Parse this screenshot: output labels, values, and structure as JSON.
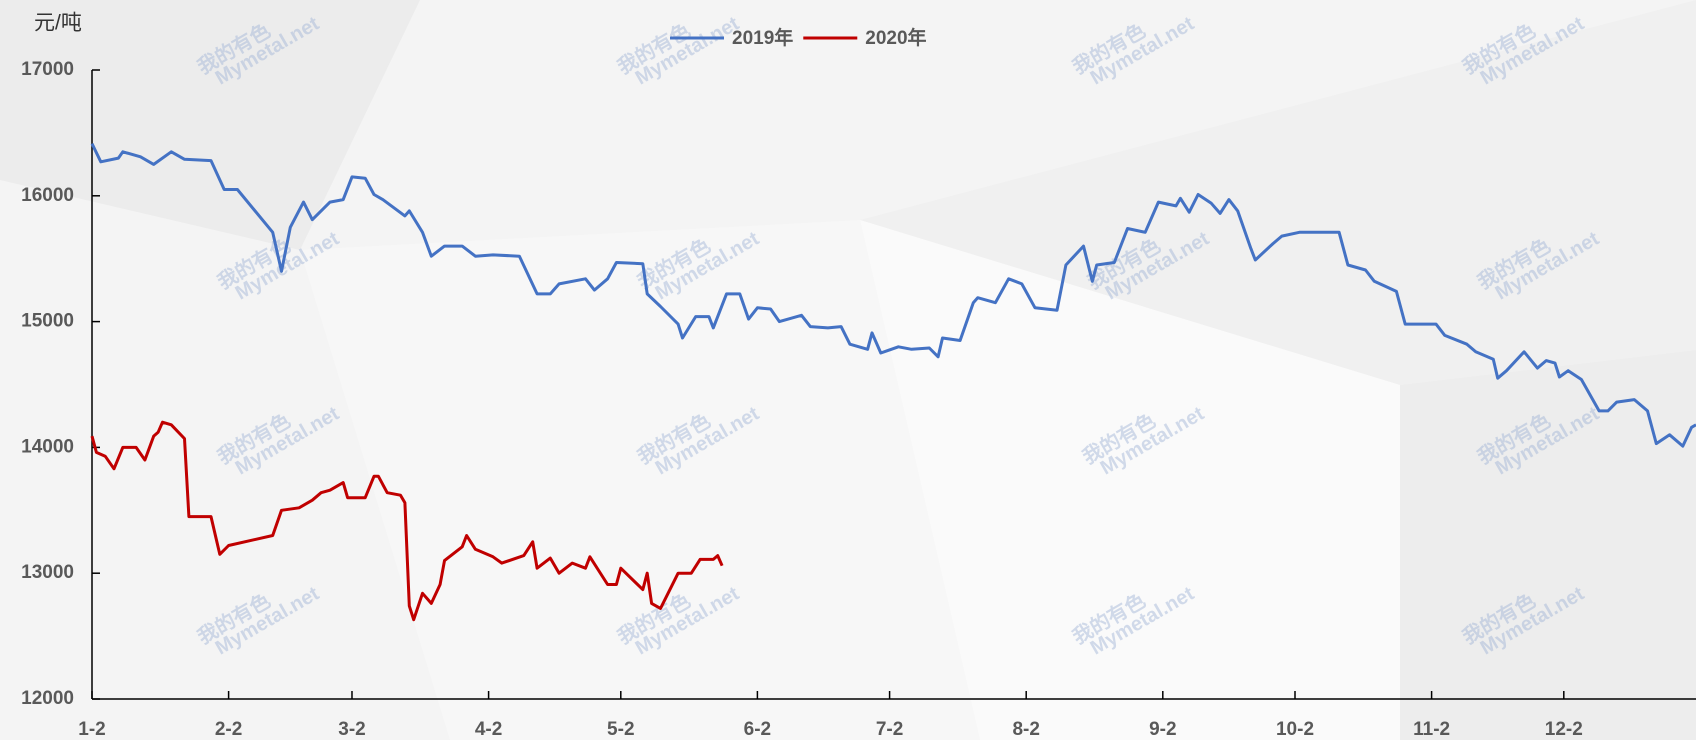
{
  "chart_data": {
    "type": "line",
    "y_label": "元/吨",
    "watermark": {
      "cn": "我的有色",
      "en": "Mymetal.net"
    },
    "xlim": [
      0,
      364
    ],
    "xticks": [
      {
        "value": 0,
        "label": "1-2"
      },
      {
        "value": 31,
        "label": "2-2"
      },
      {
        "value": 59,
        "label": "3-2"
      },
      {
        "value": 90,
        "label": "4-2"
      },
      {
        "value": 120,
        "label": "5-2"
      },
      {
        "value": 151,
        "label": "6-2"
      },
      {
        "value": 181,
        "label": "7-2"
      },
      {
        "value": 212,
        "label": "8-2"
      },
      {
        "value": 243,
        "label": "9-2"
      },
      {
        "value": 273,
        "label": "10-2"
      },
      {
        "value": 304,
        "label": "11-2"
      },
      {
        "value": 334,
        "label": "12-2"
      }
    ],
    "ylim": [
      12000,
      17000
    ],
    "yticks": [
      12000,
      13000,
      14000,
      15000,
      16000,
      17000
    ],
    "legend": "top",
    "series": [
      {
        "name": "2019年",
        "color": "#4472c4",
        "x": [
          0,
          2,
          6,
          7,
          11,
          14,
          18,
          21,
          27,
          30,
          33,
          41,
          43,
          45,
          48,
          50,
          54,
          57,
          59,
          62,
          64,
          66,
          71,
          72,
          75,
          77,
          80,
          84,
          87,
          91,
          97,
          101,
          104,
          106,
          112,
          114,
          117,
          119,
          125,
          126,
          129,
          133,
          134,
          137,
          140,
          141,
          144,
          147,
          149,
          151,
          154,
          156,
          161,
          163,
          167,
          170,
          172,
          176,
          177,
          179,
          183,
          186,
          190,
          192,
          193,
          197,
          200,
          201,
          205,
          208,
          211,
          214,
          219,
          221,
          225,
          227,
          228,
          232,
          235,
          239,
          242,
          246,
          247,
          249,
          251,
          254,
          256,
          258,
          260,
          263,
          264,
          268,
          270,
          274,
          283,
          285,
          289,
          291,
          296,
          298,
          305,
          307,
          312,
          314,
          318,
          319,
          321,
          325,
          328,
          330,
          332,
          333,
          335,
          338,
          342,
          344,
          346,
          350,
          353,
          355,
          358,
          361,
          363,
          364
        ],
        "values": [
          16415,
          16270,
          16300,
          16350,
          16310,
          16250,
          16350,
          16290,
          16280,
          16050,
          16050,
          15710,
          15400,
          15750,
          15950,
          15810,
          15950,
          15970,
          16150,
          16140,
          16010,
          15970,
          15840,
          15880,
          15710,
          15520,
          15600,
          15600,
          15520,
          15530,
          15520,
          15220,
          15220,
          15300,
          15340,
          15250,
          15340,
          15470,
          15460,
          15220,
          15120,
          14980,
          14870,
          15040,
          15040,
          14950,
          15220,
          15220,
          15020,
          15110,
          15100,
          15000,
          15050,
          14960,
          14950,
          14960,
          14820,
          14780,
          14910,
          14750,
          14800,
          14780,
          14790,
          14720,
          14870,
          14850,
          15150,
          15190,
          15150,
          15340,
          15300,
          15110,
          15090,
          15450,
          15600,
          15320,
          15450,
          15470,
          15740,
          15710,
          15950,
          15920,
          15980,
          15870,
          16010,
          15940,
          15860,
          15970,
          15880,
          15580,
          15490,
          15620,
          15680,
          15710,
          15710,
          15450,
          15410,
          15320,
          15240,
          14980,
          14980,
          14890,
          14820,
          14760,
          14700,
          14550,
          14610,
          14760,
          14630,
          14690,
          14670,
          14560,
          14610,
          14540,
          14290,
          14290,
          14360,
          14380,
          14290,
          14030,
          14100,
          14010,
          14160,
          14180
        ]
      },
      {
        "name": "2020年",
        "color": "#c00000",
        "x": [
          0,
          1,
          3,
          5,
          7,
          10,
          12,
          14,
          15,
          16,
          18,
          21,
          22,
          27,
          28,
          29,
          31,
          41,
          43,
          47,
          50,
          52,
          54,
          57,
          58,
          62,
          64,
          65,
          67,
          70,
          71,
          72,
          73,
          75,
          77,
          79,
          80,
          84,
          85,
          87,
          91,
          93,
          98,
          100,
          101,
          104,
          106,
          109,
          112,
          113,
          117,
          119,
          120,
          125,
          126,
          127,
          129,
          133,
          136,
          138,
          141,
          142,
          143
        ],
        "values": [
          14090,
          13960,
          13930,
          13830,
          14000,
          14000,
          13900,
          14090,
          14120,
          14200,
          14180,
          14070,
          13450,
          13450,
          13300,
          13150,
          13220,
          13300,
          13500,
          13520,
          13580,
          13640,
          13660,
          13720,
          13600,
          13600,
          13770,
          13770,
          13640,
          13620,
          13560,
          12740,
          12630,
          12840,
          12760,
          12910,
          13100,
          13210,
          13300,
          13190,
          13130,
          13080,
          13140,
          13250,
          13040,
          13120,
          13000,
          13080,
          13040,
          13130,
          12910,
          12910,
          13040,
          12870,
          13000,
          12760,
          12720,
          13000,
          13000,
          13110,
          13110,
          13140,
          13060
        ]
      }
    ]
  }
}
